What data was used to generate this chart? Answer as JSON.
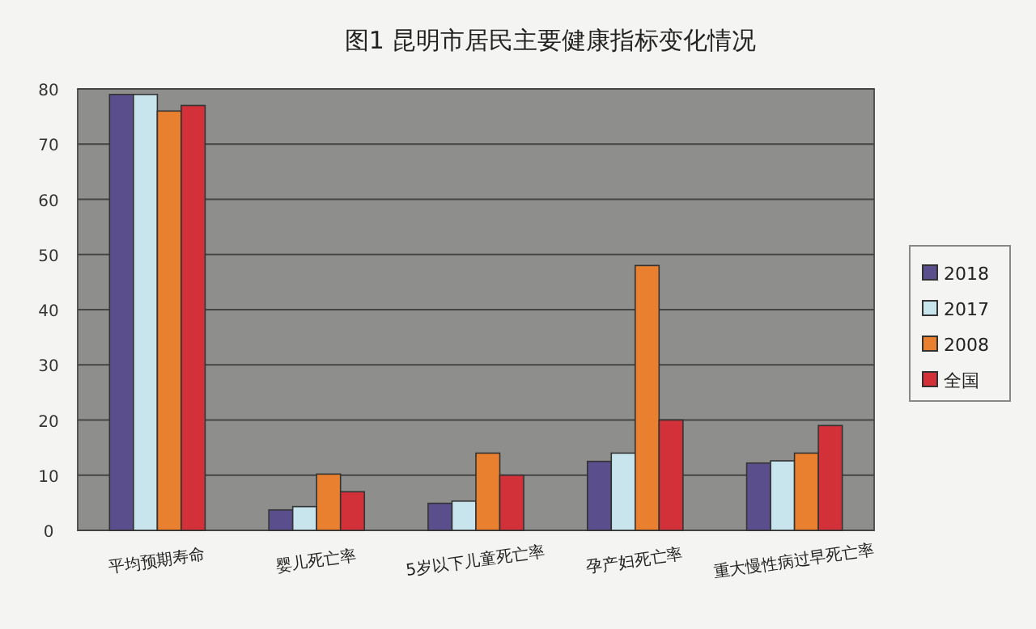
{
  "chart_data": {
    "type": "bar",
    "title": "图1  昆明市居民主要健康指标变化情况",
    "categories": [
      "平均预期寿命",
      "婴儿死亡率",
      "5岁以下儿童死亡率",
      "孕产妇死亡率",
      "重大慢性病过早死亡率"
    ],
    "series": [
      {
        "name": "2018",
        "color": "#5a4f8c",
        "values": [
          79,
          3.7,
          4.9,
          12.5,
          12.2
        ]
      },
      {
        "name": "2017",
        "color": "#c8e4ec",
        "values": [
          79,
          4.3,
          5.3,
          14,
          12.6
        ]
      },
      {
        "name": "2008",
        "color": "#e8802f",
        "values": [
          76,
          10.2,
          14,
          48,
          14
        ]
      },
      {
        "name": "全国",
        "color": "#d2313a",
        "values": [
          77,
          7,
          10,
          20,
          19
        ]
      }
    ],
    "ylim": [
      0,
      80
    ],
    "yticks": [
      0,
      10,
      20,
      30,
      40,
      50,
      60,
      70,
      80
    ],
    "grid": "y",
    "legend": "right"
  }
}
